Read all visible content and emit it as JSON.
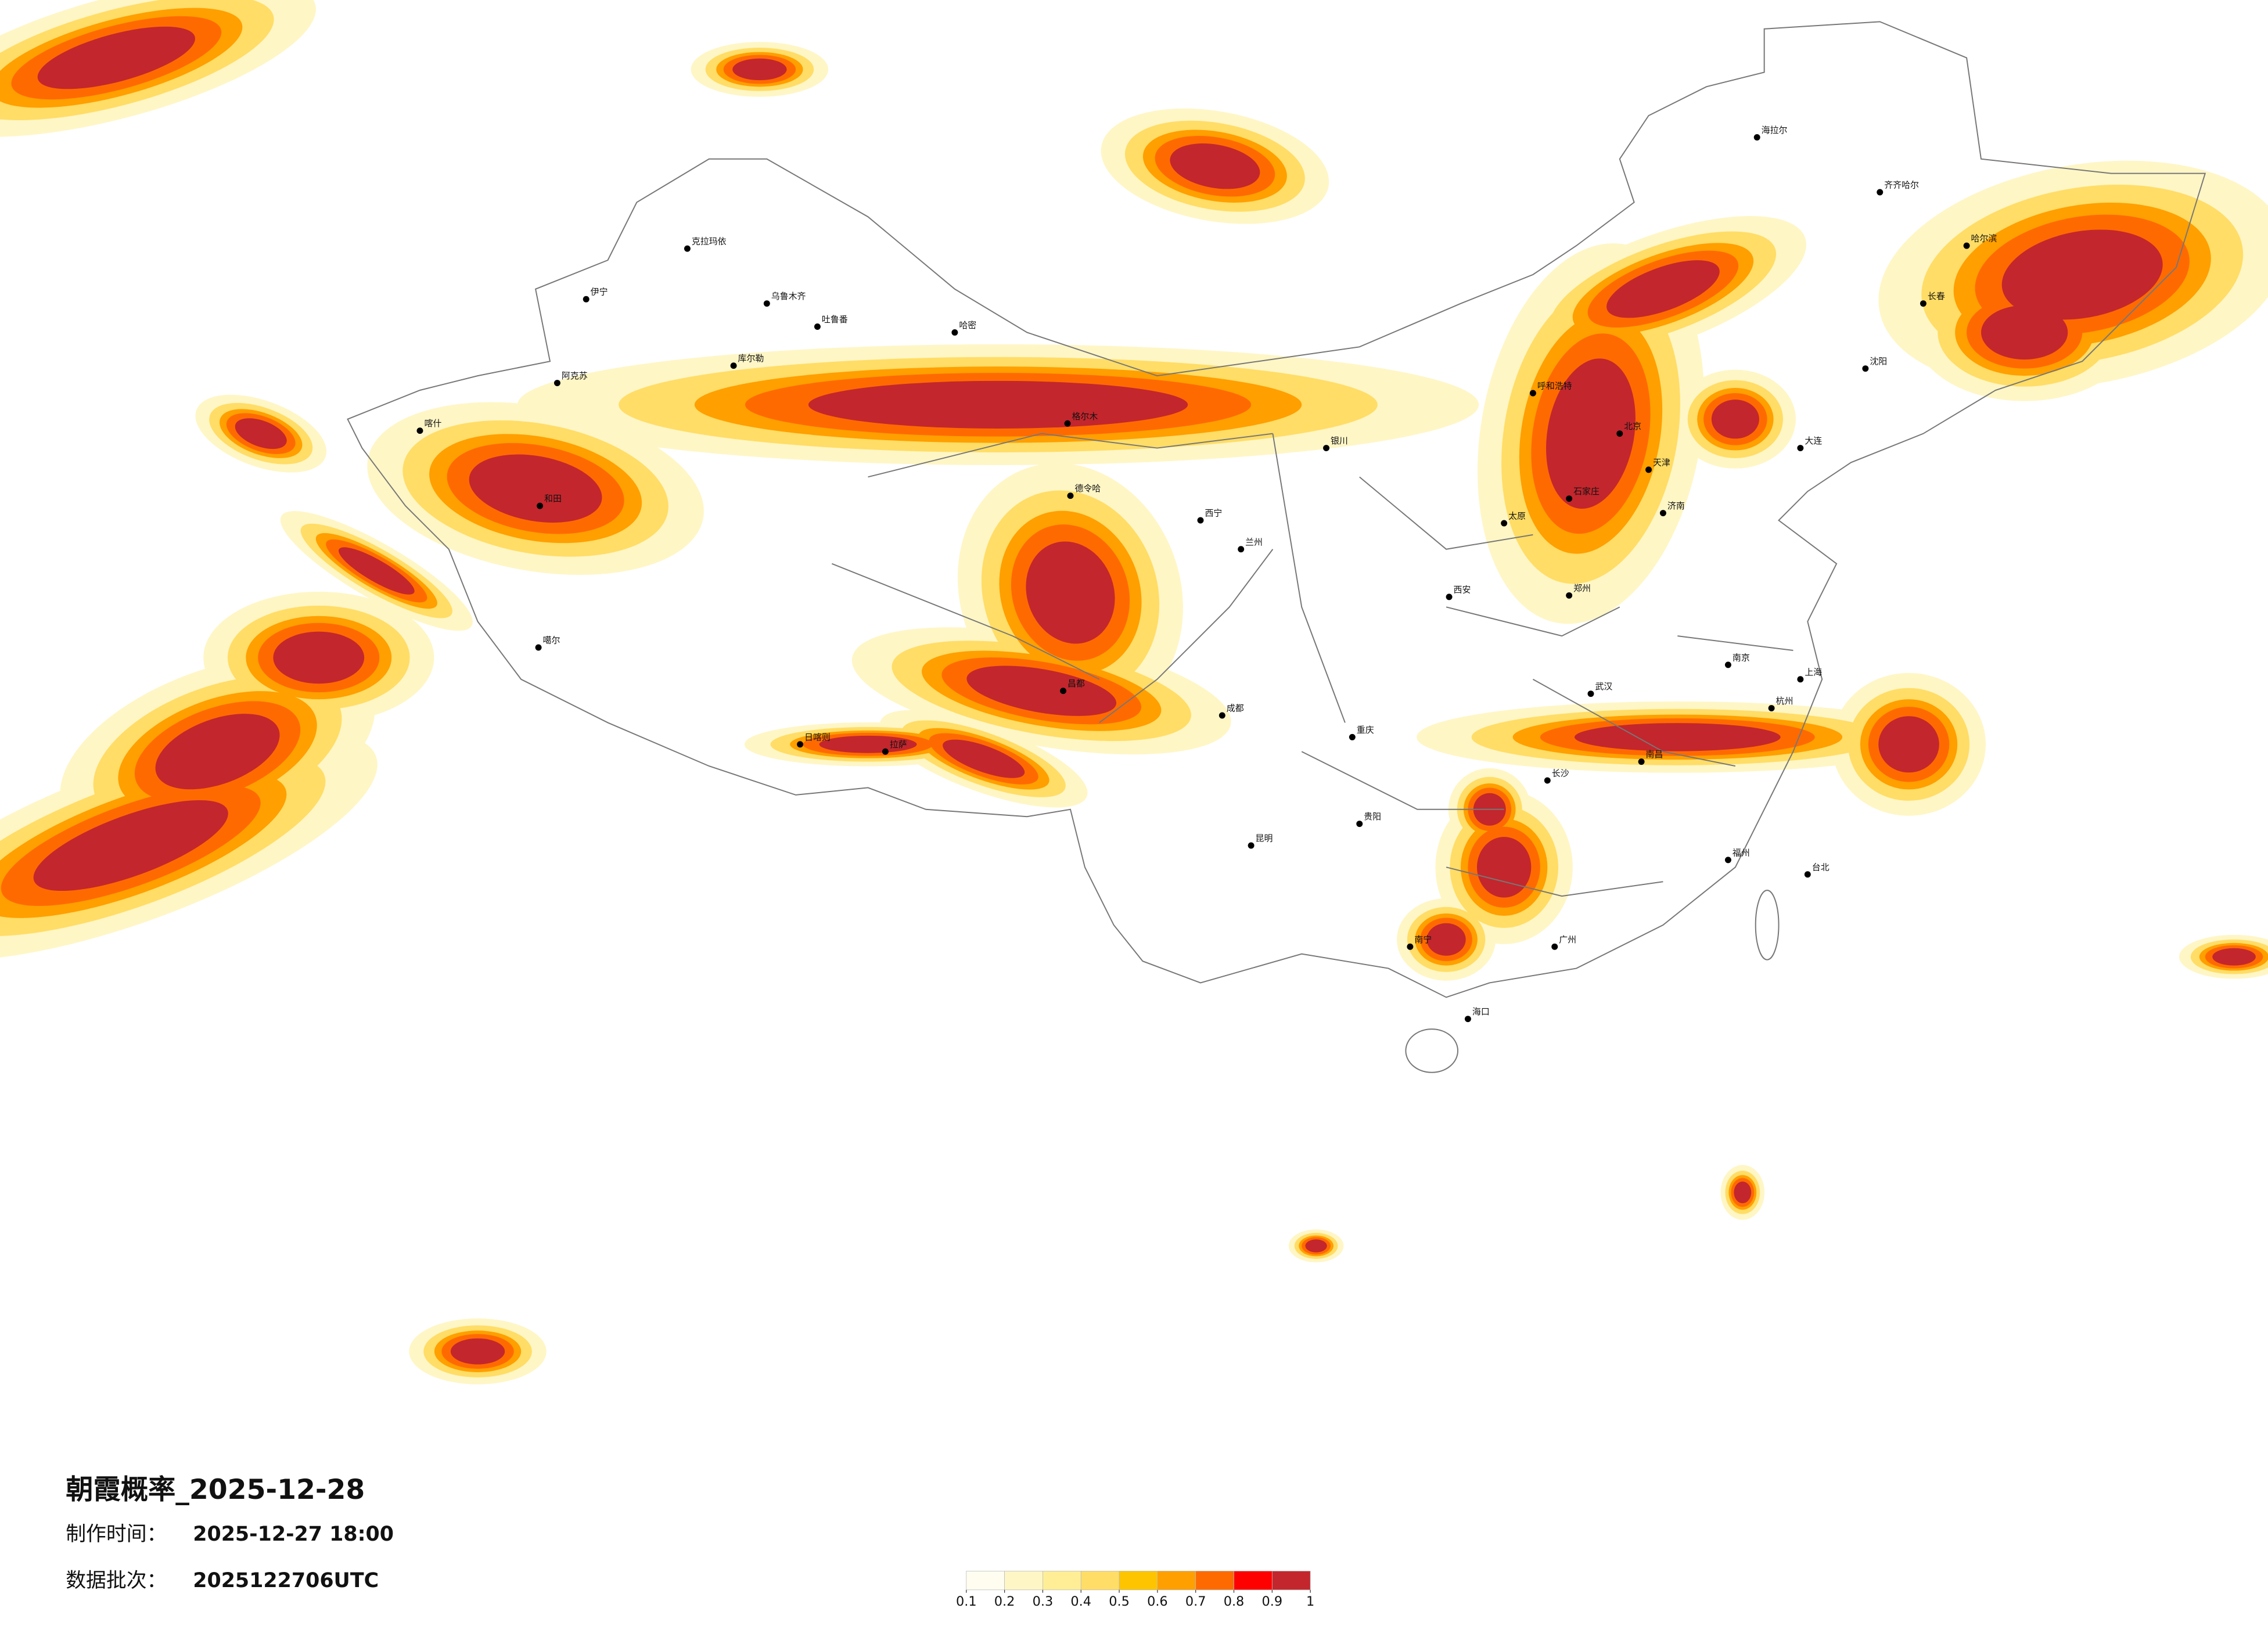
{
  "title": "朝霞概率_2025-12-28",
  "made_time": {
    "label": "制作时间：",
    "value": "2025-12-27 18:00"
  },
  "batch": {
    "label": "数据批次：",
    "value": "2025122706UTC"
  },
  "legend": {
    "colors": [
      "#fffdf0",
      "#fff6c6",
      "#ffee96",
      "#ffdd66",
      "#ffc400",
      "#ff9f00",
      "#ff6a00",
      "#ff0000",
      "#c3262d"
    ],
    "ticks": [
      0.1,
      0.2,
      0.3,
      0.4,
      0.5,
      0.6,
      0.7,
      0.8,
      0.9,
      1
    ]
  },
  "cities": [
    "克拉玛依",
    "伊宁",
    "阿克苏",
    "哈密",
    "库尔勒",
    "乌鲁木齐",
    "吐鲁番",
    "喀什",
    "和田",
    "噶尔",
    "拉萨",
    "日喀则",
    "昌都",
    "格尔木",
    "德令哈",
    "西宁",
    "兰州",
    "银川",
    "呼和浩特",
    "北京",
    "天津",
    "石家庄",
    "太原",
    "西安",
    "郑州",
    "济南",
    "南京",
    "上海",
    "杭州",
    "武汉",
    "长沙",
    "南昌",
    "福州",
    "广州",
    "南宁",
    "昆明",
    "贵阳",
    "成都",
    "重庆",
    "海口",
    "台北",
    "哈尔滨",
    "长春",
    "沈阳",
    "海拉尔",
    "齐齐哈尔",
    "大连"
  ]
}
